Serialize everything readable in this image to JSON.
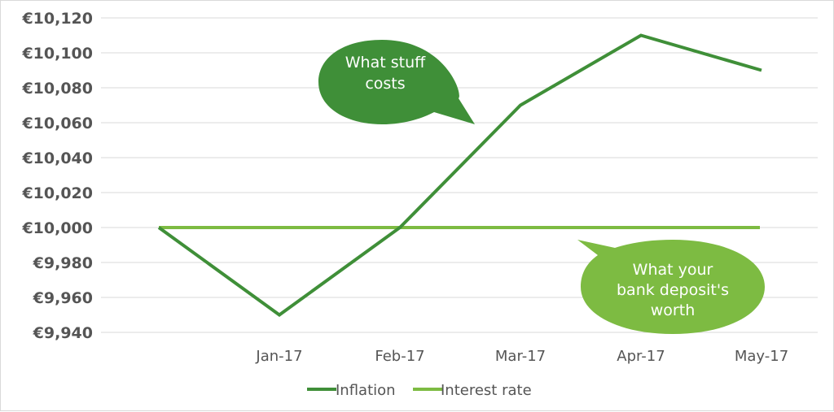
{
  "chart_data": {
    "type": "line",
    "categories": [
      "",
      "Jan-17",
      "Feb-17",
      "Mar-17",
      "Apr-17",
      "May-17"
    ],
    "series": [
      {
        "name": "Inflation",
        "values": [
          10000,
          9950,
          10000,
          10070,
          10110,
          10090
        ],
        "color": "#3f8f38"
      },
      {
        "name": "Interest rate",
        "values": [
          10000,
          10000,
          10000,
          10000,
          10000,
          10000
        ],
        "color": "#7dbb42"
      }
    ],
    "ylim": [
      9940,
      10120
    ],
    "yticks": [
      9940,
      9960,
      9980,
      10000,
      10020,
      10040,
      10060,
      10080,
      10100,
      10120
    ],
    "ytick_labels": [
      "€9,940",
      "€9,960",
      "€9,980",
      "€10,000",
      "€10,020",
      "€10,040",
      "€10,060",
      "€10,080",
      "€10,100",
      "€10,120"
    ],
    "grid": true,
    "legend_position": "bottom",
    "title": "",
    "xlabel": "",
    "ylabel": "",
    "annotations": [
      {
        "lines": [
          "What stuff",
          "costs"
        ],
        "color": "#3f8f38"
      },
      {
        "lines": [
          "What your",
          "bank deposit's",
          "worth"
        ],
        "color": "#7dbb42"
      }
    ]
  }
}
